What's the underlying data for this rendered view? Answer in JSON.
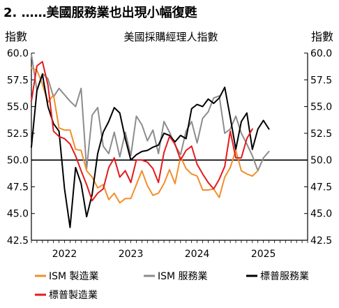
{
  "chart_data": {
    "type": "line",
    "title": "2. ……美國服務業也出現小幅復甦",
    "subtitle": "美國採購經理人指數",
    "ylabel_left": "指數",
    "ylabel_right": "指數",
    "ylim": [
      42.5,
      60.0
    ],
    "yticks": [
      "42.5",
      "45.0",
      "47.5",
      "50.0",
      "52.5",
      "55.0",
      "57.5",
      "60.0"
    ],
    "ytick_values": [
      42.5,
      45.0,
      47.5,
      50.0,
      52.5,
      55.0,
      57.5,
      60.0
    ],
    "xlim": [
      0,
      50
    ],
    "xticks": [
      "2022",
      "2023",
      "2024",
      "2025"
    ],
    "xtick_positions": [
      6,
      18,
      30,
      42
    ],
    "reference_line": 50.0,
    "grid": false,
    "legend_position": "bottom",
    "series": [
      {
        "name": "ISM 製造業",
        "color": "#f28e2b",
        "values": [
          58.6,
          58.4,
          57.1,
          55.4,
          56.1,
          53.0,
          52.8,
          52.8,
          51.0,
          50.9,
          49.0,
          48.4,
          47.4,
          47.7,
          46.3,
          46.9,
          46.0,
          46.4,
          46.4,
          47.7,
          49.0,
          47.6,
          46.7,
          46.9,
          47.8,
          49.1,
          47.8,
          50.3,
          49.2,
          48.7,
          48.5,
          47.2,
          47.2,
          47.3,
          46.5,
          48.4,
          49.3,
          50.9,
          49.0,
          48.7,
          48.5,
          49.0
        ]
      },
      {
        "name": "ISM 服務業",
        "color": "#8c8c8c",
        "values": [
          59.9,
          56.5,
          58.1,
          57.6,
          55.9,
          56.7,
          56.1,
          55.5,
          55.0,
          56.7,
          49.2,
          54.2,
          54.9,
          51.3,
          50.6,
          52.6,
          50.3,
          52.6,
          50.4,
          54.1,
          53.3,
          51.8,
          52.8,
          50.6,
          53.6,
          52.6,
          51.4,
          50.5,
          52.7,
          53.6,
          51.6,
          53.9,
          54.5,
          55.8,
          56.0,
          52.5,
          52.9,
          54.1,
          52.5,
          51.5,
          50.4,
          49.0,
          50.2,
          50.8
        ]
      },
      {
        "name": "標普服務業",
        "color": "#000000",
        "values": [
          51.2,
          56.5,
          58.0,
          55.0,
          53.4,
          52.7,
          47.3,
          43.7,
          49.3,
          47.8,
          44.7,
          46.8,
          50.6,
          52.6,
          53.6,
          54.9,
          54.4,
          52.0,
          50.0,
          50.5,
          50.8,
          50.9,
          51.2,
          51.4,
          52.5,
          52.3,
          51.7,
          52.3,
          52.0,
          54.8,
          55.2,
          55.0,
          55.7,
          55.3,
          55.8,
          56.8,
          54.0,
          51.0,
          53.6,
          54.4,
          51.0,
          52.9,
          53.7,
          52.9
        ]
      },
      {
        "name": "標普製造業",
        "color": "#e41a1c",
        "values": [
          55.5,
          58.8,
          59.2,
          57.0,
          52.7,
          52.2,
          52.0,
          51.5,
          50.4,
          49.0,
          47.7,
          46.2,
          46.9,
          47.3,
          49.3,
          50.2,
          48.4,
          49.0,
          47.9,
          50.0,
          50.0,
          49.8,
          49.2,
          47.9,
          50.7,
          52.2,
          51.5,
          50.0,
          50.9,
          51.3,
          49.6,
          48.7,
          47.9,
          47.3,
          48.2,
          49.4,
          52.7,
          50.2,
          50.2,
          52.0,
          52.9
        ]
      }
    ]
  }
}
